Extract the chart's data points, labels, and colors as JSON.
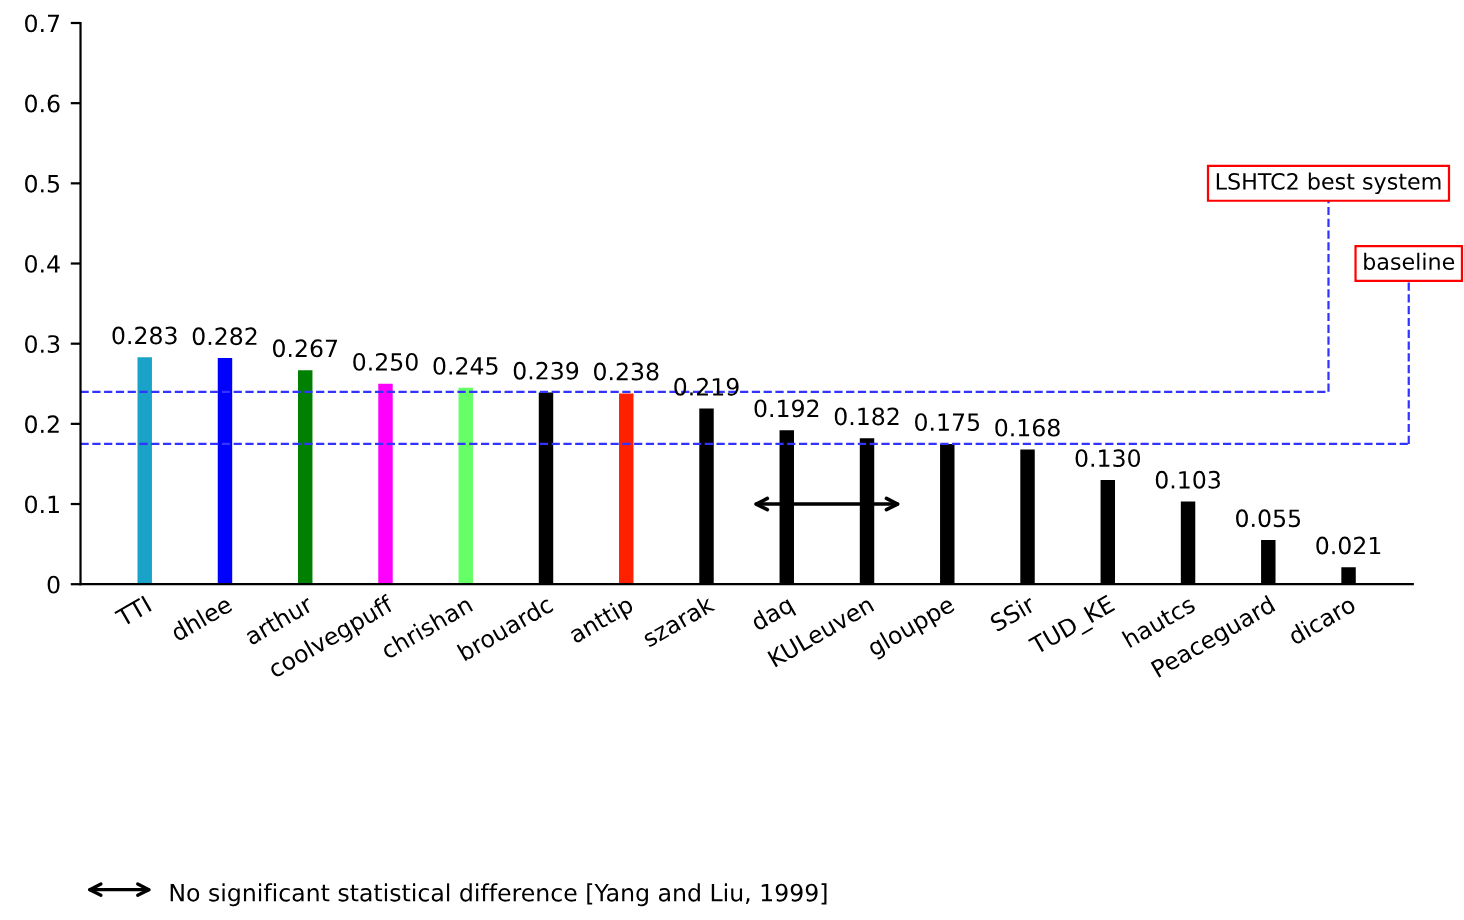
{
  "chart_data": {
    "type": "bar",
    "categories": [
      "TTI",
      "dhlee",
      "arthur",
      "coolvegpuff",
      "chrishan",
      "brouardc",
      "anttip",
      "szarak",
      "daq",
      "KULeuven",
      "glouppe",
      "SSir",
      "TUD_KE",
      "hautcs",
      "Peaceguard",
      "dicaro"
    ],
    "values": [
      0.283,
      0.282,
      0.267,
      0.25,
      0.245,
      0.239,
      0.238,
      0.219,
      0.192,
      0.182,
      0.175,
      0.168,
      0.13,
      0.103,
      0.055,
      0.021
    ],
    "colors": [
      "#1aa3c8",
      "#0000ff",
      "#008000",
      "#ff00ff",
      "#66ff66",
      "#000000",
      "#ff2000",
      "#000000",
      "#000000",
      "#000000",
      "#000000",
      "#000000",
      "#000000",
      "#000000",
      "#000000",
      "#000000"
    ],
    "value_labels": [
      "0.283",
      "0.282",
      "0.267",
      "0.250",
      "0.245",
      "0.239",
      "0.238",
      "0.219",
      "0.192",
      "0.182",
      "0.175",
      "0.168",
      "0.130",
      "0.103",
      "0.055",
      "0.021"
    ],
    "ylim": [
      0,
      0.7
    ],
    "yticks": [
      0,
      0.1,
      0.2,
      0.3,
      0.4,
      0.5,
      0.6,
      0.7
    ],
    "grid": false,
    "ref_lines": [
      {
        "axis": "y",
        "value": 0.24,
        "label": "LSHTC2 best system",
        "color": "#3333ff",
        "line_style": "dashed"
      },
      {
        "axis": "y",
        "value": 0.175,
        "label": "baseline",
        "color": "#3333ff",
        "line_style": "dashed"
      }
    ],
    "annotations": [
      "No significant statistical difference [Yang and Liu, 1999]"
    ]
  }
}
